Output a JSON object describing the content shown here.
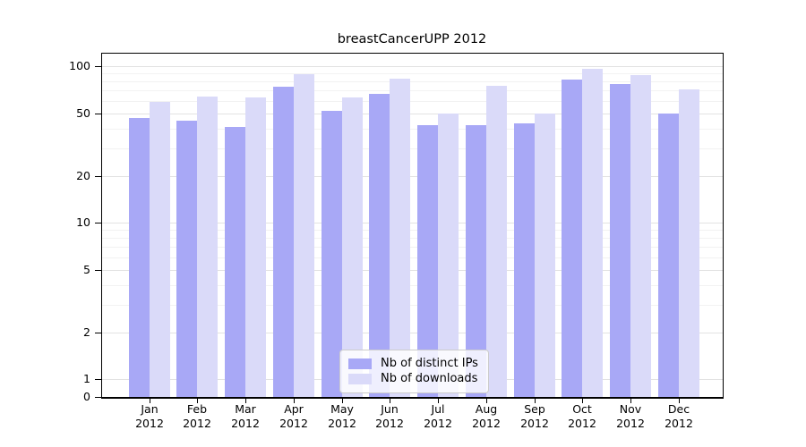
{
  "title": "breastCancerUPP 2012",
  "chart_data": {
    "type": "bar",
    "title": "breastCancerUPP 2012",
    "yscale": "log (linear segment from 1 down to 0 at baseline)",
    "grid": "on (major + minor horizontal gridlines)",
    "legend_position": "lower center, inside axes",
    "ylim": [
      0,
      122
    ],
    "yticks": [
      100,
      50,
      20,
      10,
      5,
      2,
      1,
      0
    ],
    "minor_gridlines": [
      90,
      80,
      70,
      60,
      40,
      30,
      9,
      8,
      7,
      6,
      4,
      3
    ],
    "categories": [
      "Jan",
      "Feb",
      "Mar",
      "Apr",
      "May",
      "Jun",
      "Jul",
      "Aug",
      "Sep",
      "Oct",
      "Nov",
      "Dec"
    ],
    "year_label": "2012",
    "series": [
      {
        "name": "Nb of distinct IPs",
        "color": "#a8a8f6",
        "values": [
          47,
          45,
          41,
          74,
          52,
          67,
          42,
          42,
          43,
          82,
          77,
          50
        ]
      },
      {
        "name": "Nb of downloads",
        "color": "#dadaf9",
        "values": [
          59,
          64,
          63,
          89,
          63,
          83,
          50,
          75,
          50,
          96,
          88,
          71
        ]
      }
    ]
  }
}
